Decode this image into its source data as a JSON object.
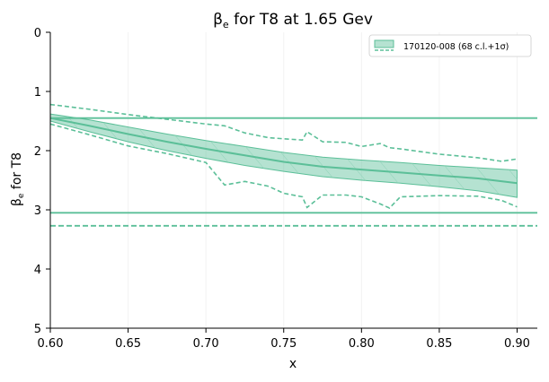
{
  "chart_data": {
    "type": "line",
    "title_main": "β",
    "title_sub": "e",
    "title_rest": " for T8 at 1.65 Gev",
    "xlabel": "x",
    "ylabel_main": "β",
    "ylabel_sub": "e",
    "ylabel_rest": " for T8",
    "xlim": [
      0.6,
      0.913
    ],
    "ylim": [
      5,
      0
    ],
    "y_inverted": true,
    "grid": false,
    "x_ticks": [
      {
        "value": 0.6,
        "label": "0.60"
      },
      {
        "value": 0.65,
        "label": "0.65"
      },
      {
        "value": 0.7,
        "label": "0.70"
      },
      {
        "value": 0.75,
        "label": "0.75"
      },
      {
        "value": 0.8,
        "label": "0.80"
      },
      {
        "value": 0.85,
        "label": "0.85"
      },
      {
        "value": 0.9,
        "label": "0.90"
      }
    ],
    "y_ticks": [
      {
        "value": 0,
        "label": "0"
      },
      {
        "value": 1,
        "label": "1"
      },
      {
        "value": 2,
        "label": "2"
      },
      {
        "value": 3,
        "label": "3"
      },
      {
        "value": 4,
        "label": "4"
      },
      {
        "value": 5,
        "label": "5"
      }
    ],
    "color": "#5bbf98",
    "legend": {
      "position": "top-right",
      "label": "170120-008 (68 c.l.+1σ)"
    },
    "series": {
      "x": [
        0.6,
        0.625,
        0.65,
        0.675,
        0.7,
        0.725,
        0.75,
        0.775,
        0.8,
        0.825,
        0.85,
        0.875,
        0.9
      ],
      "central": [
        1.45,
        1.58,
        1.72,
        1.85,
        1.97,
        2.08,
        2.19,
        2.27,
        2.32,
        2.37,
        2.42,
        2.47,
        2.55
      ],
      "band_lower": [
        1.38,
        1.48,
        1.6,
        1.72,
        1.83,
        1.93,
        2.03,
        2.11,
        2.16,
        2.2,
        2.25,
        2.29,
        2.33
      ],
      "band_upper": [
        1.5,
        1.68,
        1.85,
        2.0,
        2.13,
        2.25,
        2.35,
        2.44,
        2.5,
        2.55,
        2.61,
        2.68,
        2.79
      ],
      "dashed_lower_x": [
        0.6,
        0.625,
        0.65,
        0.675,
        0.7,
        0.712,
        0.725,
        0.74,
        0.75,
        0.762,
        0.765,
        0.775,
        0.79,
        0.8,
        0.812,
        0.818,
        0.825,
        0.85,
        0.875,
        0.89,
        0.9
      ],
      "dashed_lower_y": [
        1.22,
        1.3,
        1.39,
        1.47,
        1.55,
        1.58,
        1.7,
        1.78,
        1.8,
        1.82,
        1.68,
        1.85,
        1.86,
        1.93,
        1.88,
        1.95,
        1.97,
        2.06,
        2.12,
        2.18,
        2.14
      ],
      "dashed_upper_x": [
        0.6,
        0.625,
        0.65,
        0.675,
        0.7,
        0.712,
        0.725,
        0.74,
        0.75,
        0.762,
        0.765,
        0.775,
        0.79,
        0.8,
        0.812,
        0.818,
        0.825,
        0.85,
        0.875,
        0.89,
        0.9
      ],
      "dashed_upper_y": [
        1.55,
        1.73,
        1.92,
        2.05,
        2.2,
        2.58,
        2.52,
        2.6,
        2.72,
        2.78,
        2.96,
        2.75,
        2.75,
        2.78,
        2.9,
        2.97,
        2.78,
        2.76,
        2.77,
        2.84,
        2.95
      ]
    },
    "hlines": [
      {
        "y": 1.45,
        "style": "solid"
      },
      {
        "y": 3.05,
        "style": "solid"
      },
      {
        "y": 3.27,
        "style": "dashed"
      }
    ]
  }
}
